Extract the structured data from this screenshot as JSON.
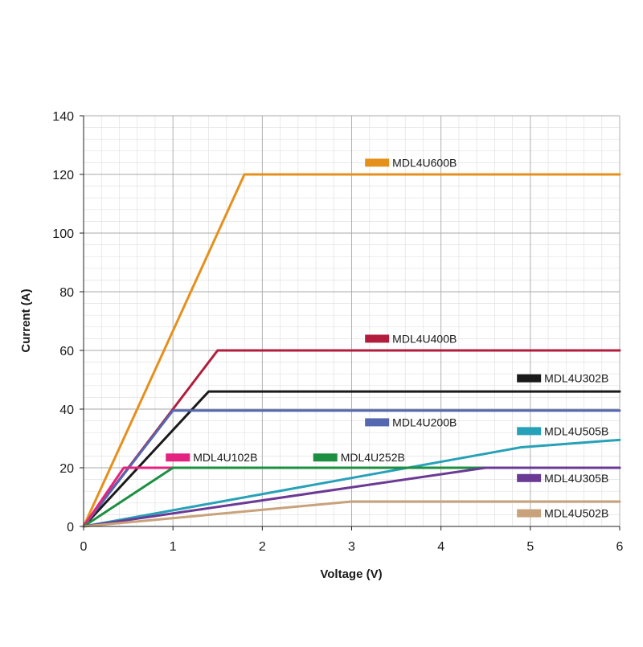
{
  "chart_data": {
    "type": "line",
    "title": "",
    "xlabel": "Voltage (V)",
    "ylabel": "Current (A)",
    "xlim": [
      0,
      6
    ],
    "ylim": [
      0,
      140
    ],
    "xticks": [
      0,
      1,
      2,
      3,
      4,
      5,
      6
    ],
    "yticks": [
      0,
      20,
      40,
      60,
      80,
      100,
      120,
      140
    ],
    "xtick_labels": [
      "0",
      "1",
      "2",
      "3",
      "4",
      "5",
      "6"
    ],
    "ytick_labels": [
      "0",
      "20",
      "40",
      "60",
      "80",
      "100",
      "120",
      "140"
    ],
    "grid": true,
    "legend": "inline labels next to each curve",
    "series": [
      {
        "name": "MDL4U600B",
        "color": "#e6901c",
        "x": [
          0,
          1.8,
          6
        ],
        "y": [
          0,
          120,
          120
        ]
      },
      {
        "name": "MDL4U400B",
        "color": "#b21d3d",
        "x": [
          0,
          1.0,
          1.5,
          6
        ],
        "y": [
          0,
          40,
          60,
          60
        ]
      },
      {
        "name": "MDL4U302B",
        "color": "#1a1a1a",
        "x": [
          0,
          1.4,
          6
        ],
        "y": [
          0,
          46,
          46
        ]
      },
      {
        "name": "MDL4U200B",
        "color": "#5567b0",
        "x": [
          0,
          1.0,
          6
        ],
        "y": [
          0,
          39.5,
          39.5
        ]
      },
      {
        "name": "MDL4U505B",
        "color": "#27a1b8",
        "x": [
          0,
          4.9,
          6
        ],
        "y": [
          0,
          27,
          29.5
        ]
      },
      {
        "name": "MDL4U102B",
        "color": "#e2237f",
        "x": [
          0,
          0.45,
          1.0
        ],
        "y": [
          0,
          20,
          20
        ]
      },
      {
        "name": "MDL4U252B",
        "color": "#1c8f40",
        "x": [
          0,
          1.0,
          6
        ],
        "y": [
          0,
          20,
          20
        ]
      },
      {
        "name": "MDL4U305B",
        "color": "#6b3a94",
        "x": [
          0,
          4.5,
          6
        ],
        "y": [
          0,
          20,
          20
        ]
      },
      {
        "name": "MDL4U502B",
        "color": "#c8a27a",
        "x": [
          0,
          3.0,
          6
        ],
        "y": [
          0,
          8.5,
          8.5
        ]
      }
    ]
  }
}
